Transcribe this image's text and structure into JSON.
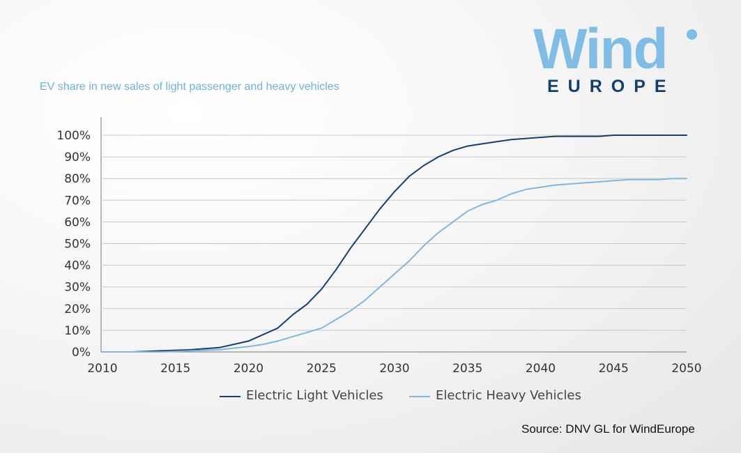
{
  "logo": {
    "word": "Wind",
    "sub": "EUROPE",
    "color_light": "#7fbde6",
    "color_dark": "#123f6e"
  },
  "subtitle": "EV share in new sales of light passenger and heavy vehicles",
  "source": "Source: DNV GL for WindEurope",
  "chart_data": {
    "type": "line",
    "title": "EV share in new sales of light passenger and heavy vehicles",
    "xlabel": "",
    "ylabel": "",
    "xlim": [
      2010,
      2050
    ],
    "ylim": [
      0,
      100
    ],
    "grid": true,
    "legend_position": "bottom",
    "x_ticks": [
      2010,
      2015,
      2020,
      2025,
      2030,
      2035,
      2040,
      2045,
      2050
    ],
    "x_tick_labels": [
      "2010",
      "2015",
      "2020",
      "2025",
      "2030",
      "2035",
      "2040",
      "2045",
      "2050"
    ],
    "y_ticks": [
      0,
      10,
      20,
      30,
      40,
      50,
      60,
      70,
      80,
      90,
      100
    ],
    "y_tick_labels": [
      "0%",
      "10%",
      "20%",
      "30%",
      "40%",
      "50%",
      "60%",
      "70%",
      "80%",
      "90%",
      "100%"
    ],
    "x": [
      2010,
      2012,
      2014,
      2016,
      2018,
      2020,
      2021,
      2022,
      2023,
      2024,
      2025,
      2026,
      2027,
      2028,
      2029,
      2030,
      2031,
      2032,
      2033,
      2034,
      2035,
      2036,
      2037,
      2038,
      2039,
      2040,
      2041,
      2042,
      2043,
      2044,
      2045,
      2046,
      2047,
      2048,
      2049,
      2050
    ],
    "series": [
      {
        "name": "Electric Light Vehicles",
        "color": "#123f6e",
        "values": [
          0,
          0,
          0.5,
          1,
          2,
          5,
          8,
          11,
          17,
          22,
          29,
          38,
          48,
          57,
          66,
          74,
          81,
          86,
          90,
          93,
          95,
          96,
          97,
          98,
          98.5,
          99,
          99.5,
          99.5,
          99.5,
          99.5,
          100,
          100,
          100,
          100,
          100,
          100
        ]
      },
      {
        "name": "Electric Heavy Vehicles",
        "color": "#7fb7e0",
        "values": [
          0,
          0,
          0,
          0.5,
          1,
          2.5,
          3.5,
          5,
          7,
          9,
          11,
          15,
          19,
          24,
          30,
          36,
          42,
          49,
          55,
          60,
          65,
          68,
          70,
          73,
          75,
          76,
          77,
          77.5,
          78,
          78.5,
          79,
          79.5,
          79.5,
          79.5,
          80,
          80
        ]
      }
    ]
  }
}
